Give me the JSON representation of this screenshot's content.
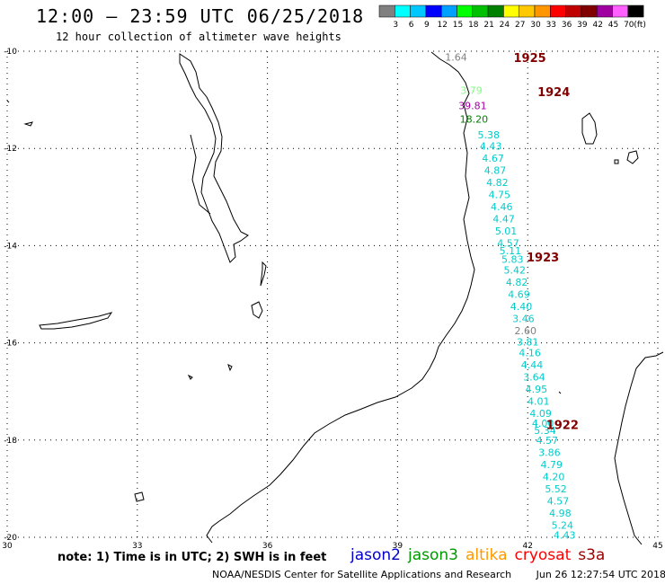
{
  "header": {
    "title": "12:00 – 23:59 UTC 06/25/2018",
    "subtitle": "12 hour collection of altimeter wave heights"
  },
  "legend": {
    "unit": "(ft)",
    "bins": [
      {
        "label": "",
        "color": "#808080"
      },
      {
        "label": "3",
        "color": "#00ffff"
      },
      {
        "label": "6",
        "color": "#00c8ff"
      },
      {
        "label": "9",
        "color": "#0000ff"
      },
      {
        "label": "12",
        "color": "#00a0ff"
      },
      {
        "label": "15",
        "color": "#00ff00"
      },
      {
        "label": "18",
        "color": "#00c000"
      },
      {
        "label": "21",
        "color": "#008000"
      },
      {
        "label": "24",
        "color": "#ffff00"
      },
      {
        "label": "27",
        "color": "#ffc800"
      },
      {
        "label": "30",
        "color": "#ff9600"
      },
      {
        "label": "33",
        "color": "#ff0000"
      },
      {
        "label": "36",
        "color": "#c00000"
      },
      {
        "label": "39",
        "color": "#800000"
      },
      {
        "label": "42",
        "color": "#a000a0"
      },
      {
        "label": "45",
        "color": "#ff60ff"
      },
      {
        "label": "70",
        "color": "#000000"
      }
    ]
  },
  "chart_data": {
    "type": "scatter",
    "lon_range": [
      30,
      45
    ],
    "lat_range": [
      -20,
      -10
    ],
    "x_ticks": [
      30,
      33,
      36,
      39,
      42,
      45
    ],
    "y_ticks": [
      -10,
      -12,
      -14,
      -16,
      -18,
      -20
    ],
    "grid": true,
    "tracks": [
      {
        "label": "1925",
        "lon": 42.05,
        "lat": -10.15,
        "color": "#800000"
      },
      {
        "label": "1924",
        "lon": 42.6,
        "lat": -10.85,
        "color": "#800000"
      },
      {
        "label": "1923",
        "lon": 42.35,
        "lat": -14.25,
        "color": "#800000"
      },
      {
        "label": "1922",
        "lon": 42.8,
        "lat": -17.7,
        "color": "#800000"
      }
    ],
    "points": [
      {
        "v": "1.64",
        "lon": 40.35,
        "lat": -10.12,
        "color": "#808080"
      },
      {
        "v": "3.79",
        "lon": 40.7,
        "lat": -10.8,
        "color": "#7fff7f"
      },
      {
        "v": "39.81",
        "lon": 40.73,
        "lat": -11.12,
        "color": "#a000a0"
      },
      {
        "v": "18.20",
        "lon": 40.76,
        "lat": -11.4,
        "color": "#008000"
      },
      {
        "v": "5.38",
        "lon": 41.1,
        "lat": -11.72,
        "color": "#00cccc"
      },
      {
        "v": "4.43",
        "lon": 41.15,
        "lat": -11.95,
        "color": "#00cccc"
      },
      {
        "v": "4.67",
        "lon": 41.2,
        "lat": -12.2,
        "color": "#00cccc"
      },
      {
        "v": "4.87",
        "lon": 41.25,
        "lat": -12.45,
        "color": "#00cccc"
      },
      {
        "v": "4.82",
        "lon": 41.3,
        "lat": -12.7,
        "color": "#00cccc"
      },
      {
        "v": "4.75",
        "lon": 41.35,
        "lat": -12.95,
        "color": "#00cccc"
      },
      {
        "v": "4.46",
        "lon": 41.4,
        "lat": -13.2,
        "color": "#00cccc"
      },
      {
        "v": "4.47",
        "lon": 41.45,
        "lat": -13.45,
        "color": "#00cccc"
      },
      {
        "v": "5.01",
        "lon": 41.5,
        "lat": -13.7,
        "color": "#00cccc"
      },
      {
        "v": "4.57",
        "lon": 41.55,
        "lat": -13.95,
        "color": "#00cccc"
      },
      {
        "v": "5.11",
        "lon": 41.6,
        "lat": -14.1,
        "color": "#00cccc"
      },
      {
        "v": "5.83",
        "lon": 41.65,
        "lat": -14.28,
        "color": "#00cccc"
      },
      {
        "v": "5.42",
        "lon": 41.7,
        "lat": -14.5,
        "color": "#00cccc"
      },
      {
        "v": "4.82",
        "lon": 41.75,
        "lat": -14.75,
        "color": "#00cccc"
      },
      {
        "v": "4.69",
        "lon": 41.8,
        "lat": -15.0,
        "color": "#00cccc"
      },
      {
        "v": "4.40",
        "lon": 41.85,
        "lat": -15.25,
        "color": "#00cccc"
      },
      {
        "v": "3.46",
        "lon": 41.9,
        "lat": -15.5,
        "color": "#00cccc"
      },
      {
        "v": "2.60",
        "lon": 41.95,
        "lat": -15.75,
        "color": "#808080"
      },
      {
        "v": "3.81",
        "lon": 42.0,
        "lat": -15.98,
        "color": "#00cccc"
      },
      {
        "v": "4.16",
        "lon": 42.05,
        "lat": -16.2,
        "color": "#00cccc"
      },
      {
        "v": "4.44",
        "lon": 42.1,
        "lat": -16.45,
        "color": "#00cccc"
      },
      {
        "v": "3.64",
        "lon": 42.15,
        "lat": -16.7,
        "color": "#00cccc"
      },
      {
        "v": "4.95",
        "lon": 42.2,
        "lat": -16.95,
        "color": "#00cccc"
      },
      {
        "v": "4.01",
        "lon": 42.25,
        "lat": -17.2,
        "color": "#00cccc"
      },
      {
        "v": "4.09",
        "lon": 42.3,
        "lat": -17.45,
        "color": "#00cccc"
      },
      {
        "v": "4.00",
        "lon": 42.35,
        "lat": -17.65,
        "color": "#00cccc"
      },
      {
        "v": "5.34",
        "lon": 42.4,
        "lat": -17.8,
        "color": "#00cccc"
      },
      {
        "v": "4.57",
        "lon": 42.45,
        "lat": -18.0,
        "color": "#00cccc"
      },
      {
        "v": "3.86",
        "lon": 42.5,
        "lat": -18.25,
        "color": "#00cccc"
      },
      {
        "v": "4.79",
        "lon": 42.55,
        "lat": -18.5,
        "color": "#00cccc"
      },
      {
        "v": "4.20",
        "lon": 42.6,
        "lat": -18.75,
        "color": "#00cccc"
      },
      {
        "v": "5.52",
        "lon": 42.65,
        "lat": -19.0,
        "color": "#00cccc"
      },
      {
        "v": "4.57",
        "lon": 42.7,
        "lat": -19.25,
        "color": "#00cccc"
      },
      {
        "v": "4.98",
        "lon": 42.75,
        "lat": -19.5,
        "color": "#00cccc"
      },
      {
        "v": "5.24",
        "lon": 42.8,
        "lat": -19.75,
        "color": "#00cccc"
      },
      {
        "v": "4.43",
        "lon": 42.85,
        "lat": -19.95,
        "color": "#00cccc"
      }
    ]
  },
  "footer": {
    "note": "note: 1) Time is in UTC; 2) SWH is in feet",
    "satellites": [
      {
        "name": "jason2",
        "color": "#0000cc"
      },
      {
        "name": "jason3",
        "color": "#009900"
      },
      {
        "name": "altika",
        "color": "#ff9900"
      },
      {
        "name": "cryosat",
        "color": "#ff0000"
      },
      {
        "name": "s3a",
        "color": "#990000"
      }
    ],
    "credit": "NOAA/NESDIS Center for Satellite Applications and Research",
    "timestamp": "Jun 26 12:27:54 UTC 2018"
  }
}
